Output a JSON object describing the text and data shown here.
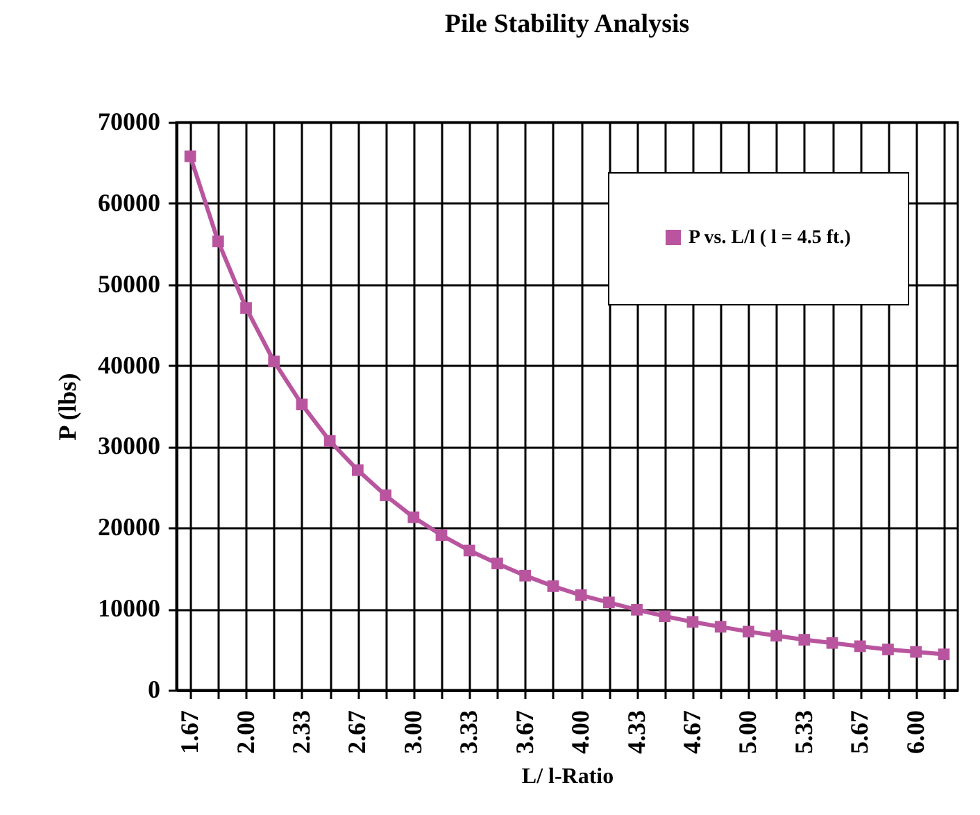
{
  "chart_data": {
    "type": "line",
    "title": "Pile Stability Analysis",
    "xlabel": "L/ l-Ratio",
    "ylabel": "P (lbs)",
    "categories": [
      "1.67",
      null,
      "2.00",
      null,
      "2.33",
      null,
      "2.67",
      null,
      "3.00",
      null,
      "3.33",
      null,
      "3.67",
      null,
      "4.00",
      null,
      "4.33",
      null,
      "4.67",
      null,
      "5.00",
      null,
      "5.33",
      null,
      "5.67",
      null,
      "6.00",
      null
    ],
    "series": [
      {
        "name": "P vs. L/l ( l = 4.5 ft.)",
        "color": "#b9559f",
        "values": [
          65800,
          55300,
          47100,
          40500,
          35200,
          30700,
          27100,
          24000,
          21300,
          19100,
          17200,
          15600,
          14100,
          12800,
          11700,
          10800,
          9900,
          9100,
          8400,
          7800,
          7200,
          6700,
          6200,
          5800,
          5400,
          5000,
          4700,
          4400
        ]
      }
    ],
    "ylim": [
      0,
      70000
    ],
    "yticks": [
      0,
      10000,
      20000,
      30000,
      40000,
      50000,
      60000,
      70000
    ],
    "grid": true,
    "legend": "top right",
    "marker": "square",
    "line_style": "solid"
  }
}
